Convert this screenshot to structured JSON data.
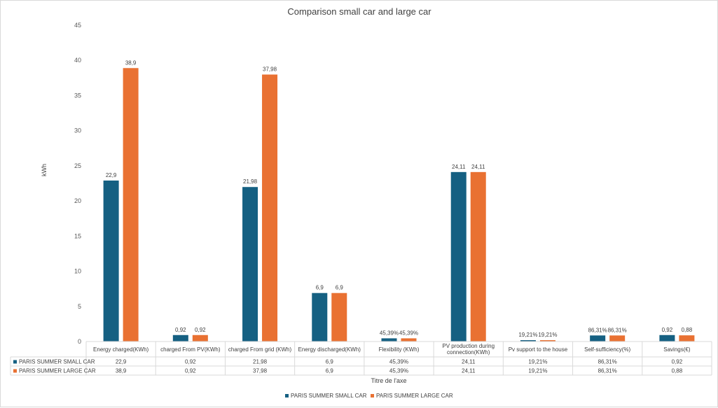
{
  "chart_data": {
    "type": "bar",
    "title": "Comparison small car and large car",
    "ylabel": "kWh",
    "xlabel": "Titre de l'axe",
    "ylim": [
      0,
      45
    ],
    "yticks": [
      0,
      5,
      10,
      15,
      20,
      25,
      30,
      35,
      40,
      45
    ],
    "grid": false,
    "legend_position": "bottom",
    "data_table": true,
    "categories": [
      [
        "Energy charged(KWh)"
      ],
      [
        "charged From PV(KWh)"
      ],
      [
        "charged From grid (KWh)"
      ],
      [
        "Energy discharged(KWh)"
      ],
      [
        "Flexibility (KWh)"
      ],
      [
        "PV production during",
        "connection(KWh)"
      ],
      [
        "Pv support to the house"
      ],
      [
        "Self-sufficiency(%)"
      ],
      [
        "Savings(€)"
      ]
    ],
    "series": [
      {
        "name": "PARIS SUMMER SMALL CAR",
        "color": "#156082",
        "values": [
          22.9,
          0.92,
          21.98,
          6.9,
          0.4539,
          24.11,
          0.1921,
          0.8631,
          0.92
        ],
        "labels": [
          "22,9",
          "0,92",
          "21,98",
          "6,9",
          "45,39%",
          "24,11",
          "19,21%",
          "86,31%",
          "0,92"
        ]
      },
      {
        "name": "PARIS  SUMMER LARGE CAR",
        "color": "#E97132",
        "values": [
          38.9,
          0.92,
          37.98,
          6.9,
          0.4539,
          24.11,
          0.1921,
          0.8631,
          0.88
        ],
        "labels": [
          "38,9",
          "0,92",
          "37,98",
          "6,9",
          "45,39%",
          "24,11",
          "19,21%",
          "86,31%",
          "0,88"
        ]
      }
    ]
  }
}
